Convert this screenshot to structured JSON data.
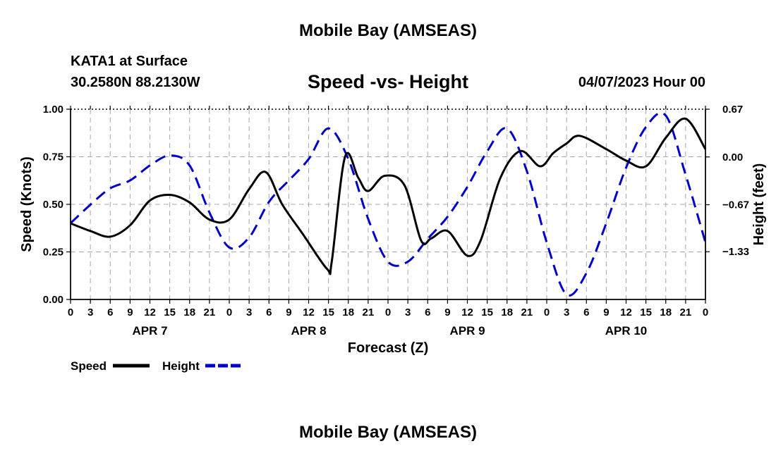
{
  "header": {
    "title": "Mobile Bay (AMSEAS)",
    "station": "KATA1 at Surface",
    "coords": "30.2580N  88.2130W",
    "chart_title": "Speed -vs- Height",
    "run_time": "04/07/2023 Hour 00",
    "bottom_title": "Mobile Bay (AMSEAS)"
  },
  "chart_data": {
    "type": "line",
    "title": "Speed -vs- Height",
    "xlabel": "Forecast (Z)",
    "ylabel": "Speed (Knots)",
    "y2label": "Height (feet)",
    "ylim": [
      0,
      1
    ],
    "y2lim": [
      -2,
      0.67
    ],
    "xlim": [
      0,
      96
    ],
    "x_unit": "hours from 04/07/2023 00Z",
    "x_tick_labels": [
      "0",
      "3",
      "6",
      "9",
      "12",
      "15",
      "18",
      "21",
      "0",
      "3",
      "6",
      "9",
      "12",
      "15",
      "18",
      "21",
      "0",
      "3",
      "6",
      "9",
      "12",
      "15",
      "18",
      "21",
      "0",
      "3",
      "6",
      "9",
      "12",
      "15",
      "18",
      "21",
      "0"
    ],
    "day_labels": [
      "APR 7",
      "APR 8",
      "APR 9",
      "APR 10"
    ],
    "y_ticks": [
      "0.00",
      "0.25",
      "0.50",
      "0.75",
      "1.00"
    ],
    "y2_ticks": [
      {
        "label": "0.67",
        "value": 0.67
      },
      {
        "label": "0.00",
        "value": 0.0
      },
      {
        "label": "−0.67",
        "value": -0.67
      },
      {
        "label": "−1.33",
        "value": -1.33
      }
    ],
    "grid": true,
    "legend_position": "bottom-left",
    "series": [
      {
        "name": "Speed",
        "axis": "left",
        "color": "#000000",
        "style": "solid",
        "x": [
          0,
          3,
          6,
          9,
          12,
          15,
          18,
          21,
          24,
          27,
          29.5,
          32,
          35,
          38.8,
          39.5,
          41.5,
          43.5,
          45,
          47.5,
          50.5,
          53,
          54.5,
          57,
          60,
          62,
          65,
          68,
          71,
          73,
          75,
          77,
          81,
          84,
          87,
          90,
          93,
          96
        ],
        "y": [
          0.4,
          0.36,
          0.33,
          0.39,
          0.52,
          0.55,
          0.51,
          0.42,
          0.42,
          0.58,
          0.67,
          0.5,
          0.35,
          0.16,
          0.2,
          0.75,
          0.64,
          0.57,
          0.65,
          0.6,
          0.31,
          0.32,
          0.36,
          0.23,
          0.31,
          0.64,
          0.78,
          0.7,
          0.77,
          0.82,
          0.86,
          0.79,
          0.73,
          0.7,
          0.85,
          0.95,
          0.79
        ]
      },
      {
        "name": "Height",
        "axis": "right",
        "color": "#0000cc",
        "style": "dashed",
        "x": [
          0,
          3,
          6,
          9,
          12,
          15,
          18,
          21,
          24,
          27,
          30,
          33,
          36,
          39,
          42,
          45,
          48,
          51,
          54,
          57,
          60,
          63,
          66,
          69,
          72,
          75,
          78,
          81,
          84,
          87,
          90,
          93,
          96
        ],
        "y": [
          -0.93,
          -0.67,
          -0.44,
          -0.33,
          -0.12,
          0.02,
          -0.12,
          -0.78,
          -1.27,
          -1.13,
          -0.63,
          -0.33,
          -0.03,
          0.4,
          -0.03,
          -0.87,
          -1.47,
          -1.47,
          -1.15,
          -0.84,
          -0.42,
          0.08,
          0.4,
          -0.2,
          -1.2,
          -1.93,
          -1.63,
          -0.93,
          -0.15,
          0.42,
          0.58,
          -0.25,
          -1.2
        ]
      }
    ]
  }
}
